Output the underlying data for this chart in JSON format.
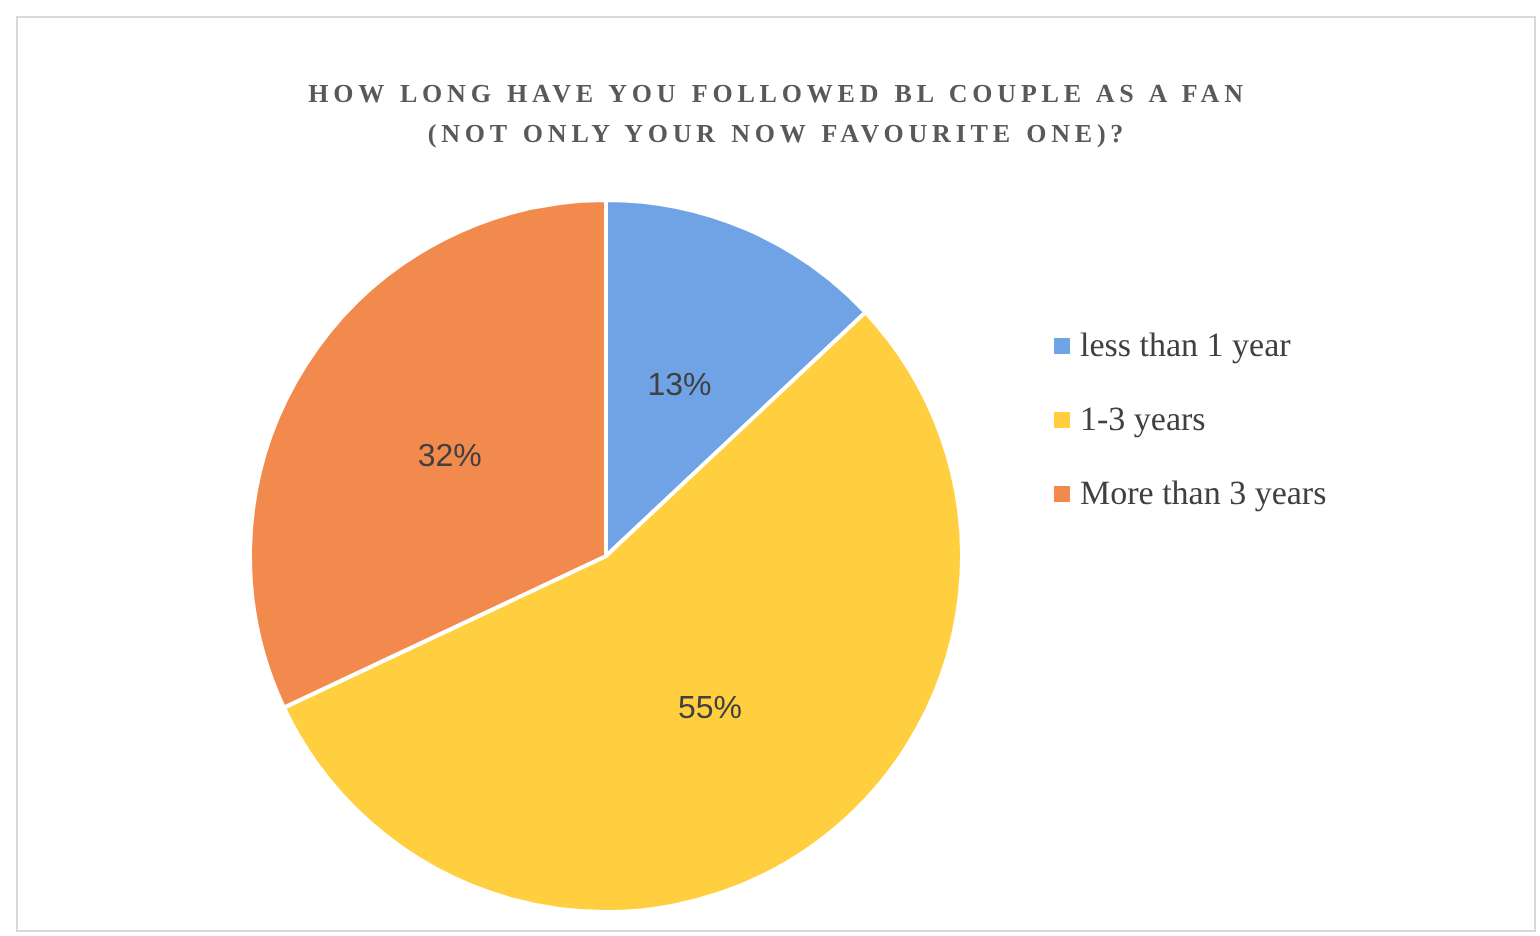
{
  "chart_data": {
    "type": "pie",
    "title": "HOW LONG HAVE YOU FOLLOWED BL COUPLE AS A FAN (NOT ONLY YOUR NOW FAVOURITE ONE)?",
    "categories": [
      "less than 1 year",
      "1-3 years",
      "More than 3 years"
    ],
    "values": [
      13,
      55,
      32
    ],
    "colors": [
      "#6fa3e6",
      "#ffcf3f",
      "#f28a4e"
    ],
    "value_labels": [
      "13%",
      "55%",
      "32%"
    ],
    "legend": "right"
  }
}
